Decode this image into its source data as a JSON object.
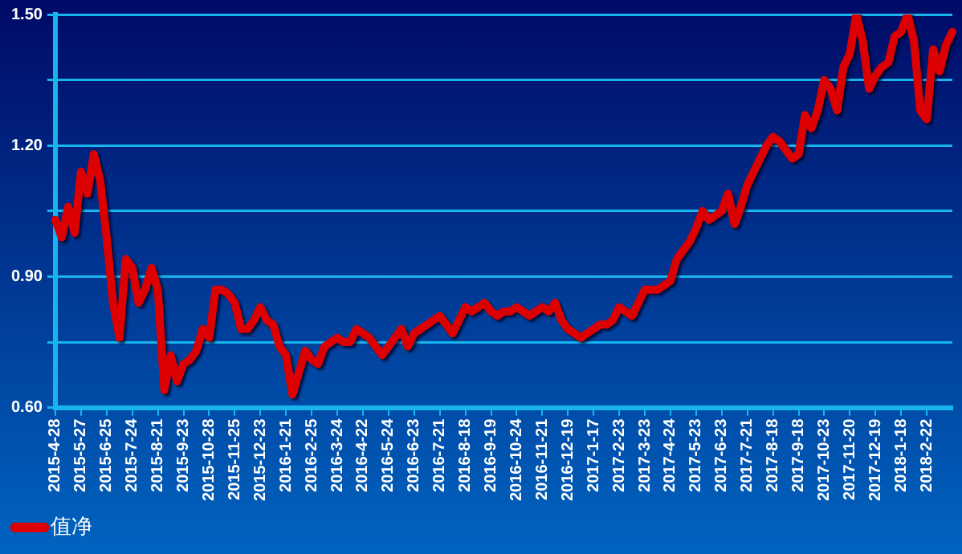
{
  "chart_data": {
    "type": "line",
    "categories": [
      "2015-4-28",
      null,
      null,
      null,
      "2015-5-27",
      null,
      null,
      null,
      "2015-6-25",
      null,
      null,
      null,
      "2015-7-24",
      null,
      null,
      null,
      "2015-8-21",
      null,
      null,
      null,
      "2015-9-23",
      null,
      null,
      null,
      "2015-10-28",
      null,
      null,
      null,
      "2015-11-25",
      null,
      null,
      null,
      "2015-12-23",
      null,
      null,
      null,
      "2016-1-21",
      null,
      null,
      null,
      "2016-2-25",
      null,
      null,
      null,
      "2016-3-24",
      null,
      null,
      null,
      "2016-4-22",
      null,
      null,
      null,
      "2016-5-24",
      null,
      null,
      null,
      "2016-6-23",
      null,
      null,
      null,
      "2016-7-21",
      null,
      null,
      null,
      "2016-8-18",
      null,
      null,
      null,
      "2016-9-19",
      null,
      null,
      null,
      "2016-10-24",
      null,
      null,
      null,
      "2016-11-21",
      null,
      null,
      null,
      "2016-12-19",
      null,
      null,
      null,
      "2017-1-17",
      null,
      null,
      null,
      "2017-2-23",
      null,
      null,
      null,
      "2017-3-23",
      null,
      null,
      null,
      "2017-4-24",
      null,
      null,
      null,
      "2017-5-23",
      null,
      null,
      null,
      "2017-6-23",
      null,
      null,
      null,
      "2017-7-21",
      null,
      null,
      null,
      "2017-8-18",
      null,
      null,
      null,
      "2017-9-18",
      null,
      null,
      null,
      "2017-10-23",
      null,
      null,
      null,
      "2017-11-20",
      null,
      null,
      null,
      "2017-12-19",
      null,
      null,
      null,
      "2018-1-18",
      null,
      null,
      null,
      "2018-2-22",
      null,
      null,
      null,
      null
    ],
    "series": [
      {
        "name": "值净",
        "color": "#dd0000",
        "values": [
          1.03,
          0.99,
          1.06,
          1.0,
          1.14,
          1.09,
          1.18,
          1.12,
          0.99,
          0.84,
          0.76,
          0.94,
          0.92,
          0.84,
          0.87,
          0.92,
          0.87,
          0.64,
          0.72,
          0.66,
          0.7,
          0.71,
          0.73,
          0.78,
          0.76,
          0.87,
          0.87,
          0.86,
          0.84,
          0.78,
          0.78,
          0.8,
          0.83,
          0.8,
          0.79,
          0.74,
          0.72,
          0.63,
          0.68,
          0.73,
          0.71,
          0.7,
          0.74,
          0.75,
          0.76,
          0.75,
          0.75,
          0.78,
          0.77,
          0.76,
          0.74,
          0.72,
          0.74,
          0.76,
          0.78,
          0.74,
          0.77,
          0.78,
          0.79,
          0.8,
          0.81,
          0.79,
          0.77,
          0.8,
          0.83,
          0.82,
          0.83,
          0.84,
          0.82,
          0.81,
          0.82,
          0.82,
          0.83,
          0.82,
          0.81,
          0.82,
          0.83,
          0.82,
          0.84,
          0.8,
          0.78,
          0.77,
          0.76,
          0.77,
          0.78,
          0.79,
          0.79,
          0.8,
          0.83,
          0.82,
          0.81,
          0.84,
          0.87,
          0.87,
          0.87,
          0.88,
          0.89,
          0.94,
          0.96,
          0.98,
          1.01,
          1.05,
          1.03,
          1.04,
          1.05,
          1.09,
          1.02,
          1.06,
          1.11,
          1.14,
          1.17,
          1.2,
          1.22,
          1.21,
          1.19,
          1.17,
          1.18,
          1.27,
          1.24,
          1.28,
          1.35,
          1.33,
          1.28,
          1.38,
          1.41,
          1.5,
          1.44,
          1.33,
          1.36,
          1.38,
          1.39,
          1.45,
          1.46,
          1.5,
          1.44,
          1.28,
          1.26,
          1.42,
          1.37,
          1.43,
          1.46
        ]
      }
    ],
    "ylim": [
      0.6,
      1.5
    ],
    "yticks": [
      {
        "value": 0.6,
        "label": "0.60"
      },
      {
        "value": 0.75,
        "label": null
      },
      {
        "value": 0.9,
        "label": "0.90"
      },
      {
        "value": 1.05,
        "label": null
      },
      {
        "value": 1.2,
        "label": "1.20"
      },
      {
        "value": 1.35,
        "label": null
      },
      {
        "value": 1.5,
        "label": "1.50"
      }
    ],
    "grid": "y",
    "legend": "bottom left",
    "marker": "none",
    "line_style": "solid"
  }
}
